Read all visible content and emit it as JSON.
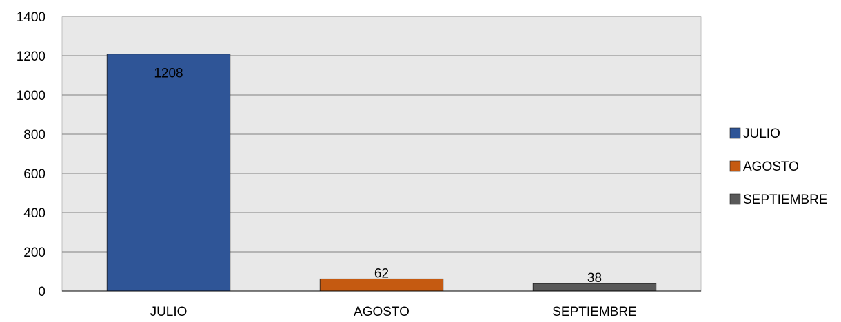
{
  "chart_data": {
    "type": "bar",
    "categories": [
      "JULIO",
      "AGOSTO",
      "SEPTIEMBRE"
    ],
    "values": [
      1208,
      62,
      38
    ],
    "data_labels": [
      "1208",
      "62",
      "38"
    ],
    "colors": [
      "#2f5597",
      "#c55a11",
      "#595959"
    ],
    "title": "",
    "xlabel": "",
    "ylabel": "",
    "ylim": [
      0,
      1400
    ],
    "yticks": [
      0,
      200,
      400,
      600,
      800,
      1000,
      1200,
      1400
    ],
    "grid": true,
    "plot_background": "#e8e8e8",
    "legend": {
      "position": "right",
      "entries": [
        "JULIO",
        "AGOSTO",
        "SEPTIEMBRE"
      ]
    }
  }
}
